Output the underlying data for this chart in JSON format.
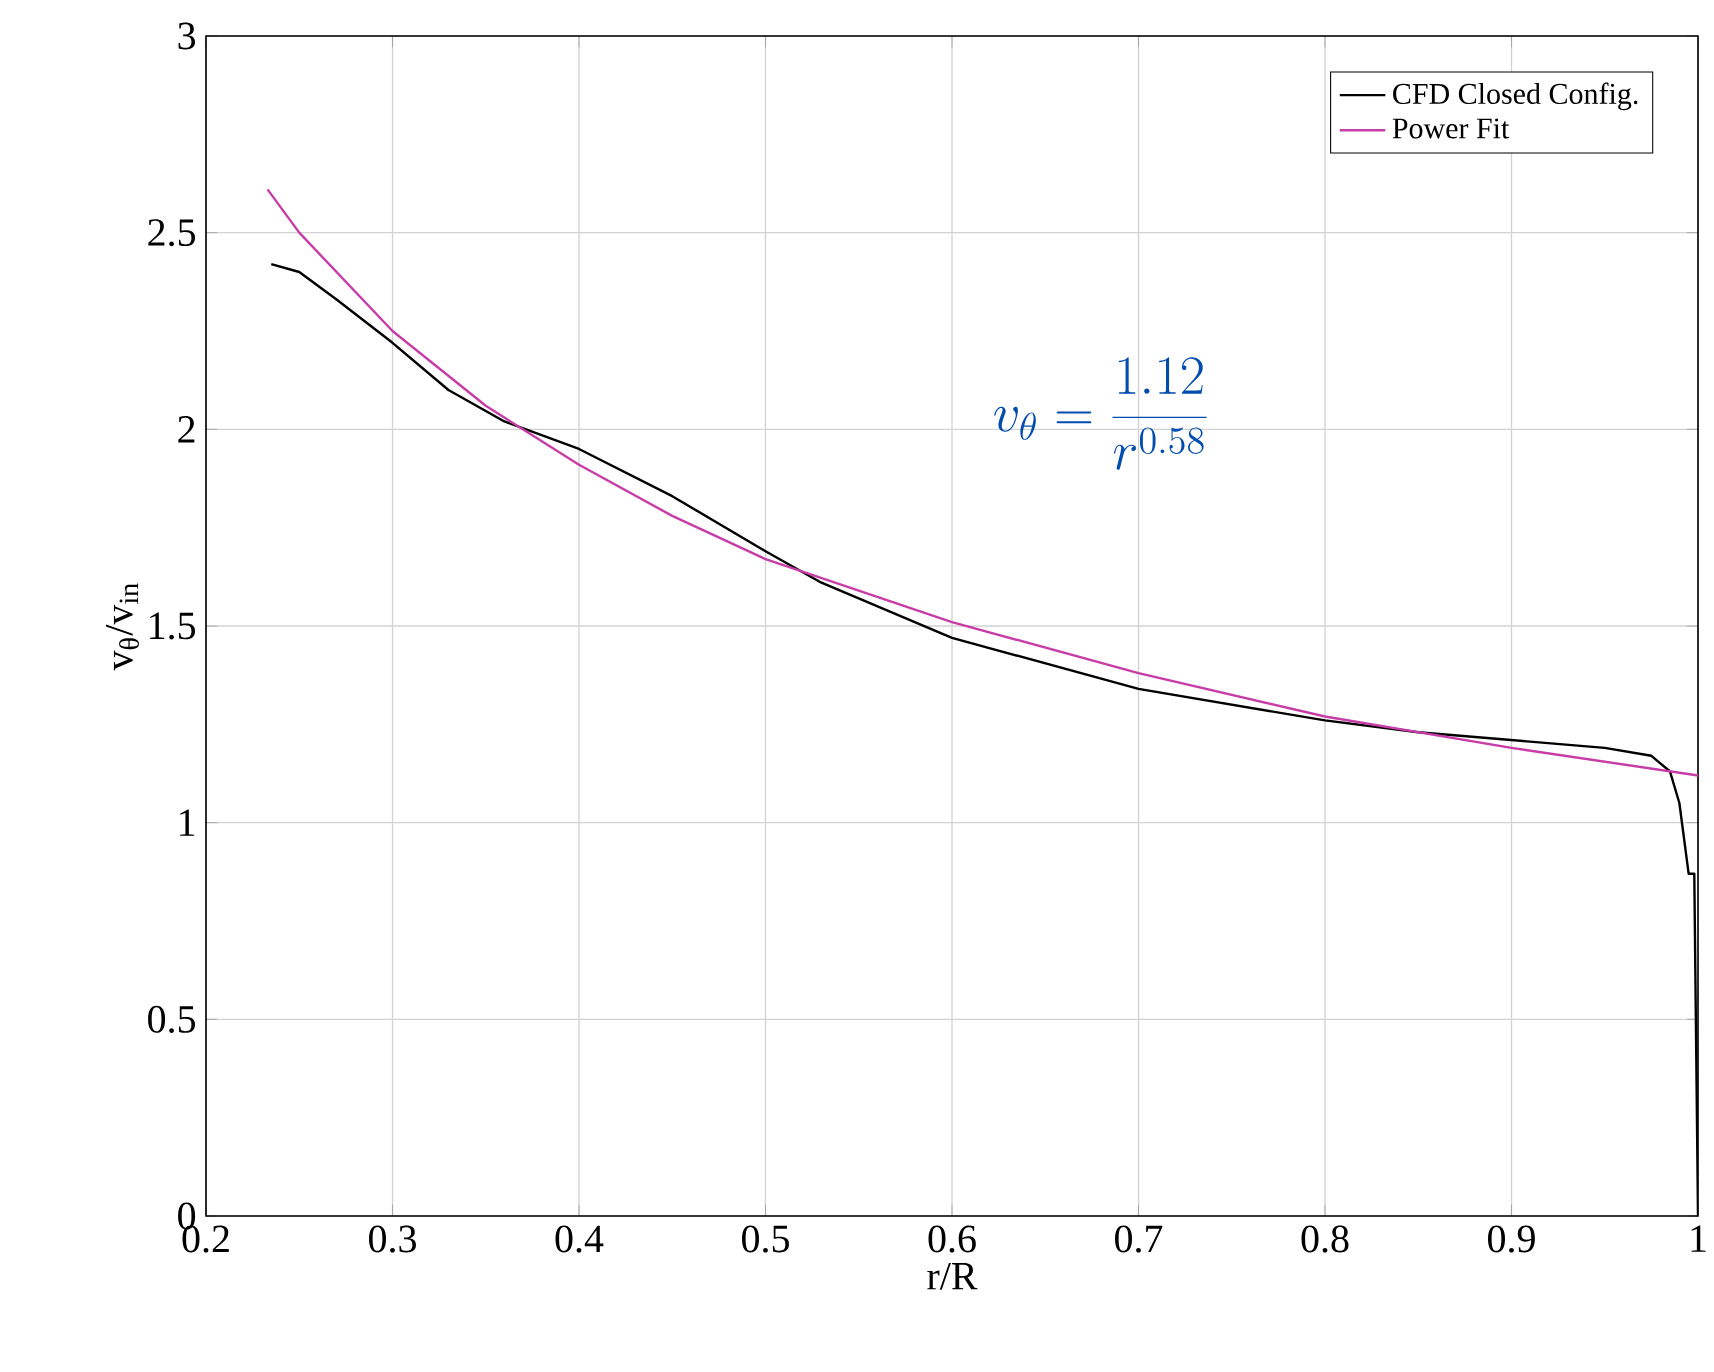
{
  "chart_data": {
    "type": "line",
    "xlabel": "r/R",
    "ylabel": "v$_{θ}$/v$_{in}$",
    "xlim": [
      0.2,
      1
    ],
    "ylim": [
      0,
      3
    ],
    "xticks": [
      0.2,
      0.3,
      0.4,
      0.5,
      0.6,
      0.7,
      0.8,
      0.9,
      1
    ],
    "yticks": [
      0,
      0.5,
      1,
      1.5,
      2,
      2.5,
      3
    ],
    "grid": true,
    "legend": "top right",
    "line_style": "solid",
    "marker": "none",
    "annotations": [
      "v_\\theta = \\frac{1.12}{r^{0.58}}"
    ],
    "series": [
      {
        "name": "CFD Closed Config.",
        "color": "#000000",
        "x": [
          0.235,
          0.25,
          0.27,
          0.3,
          0.33,
          0.36,
          0.4,
          0.45,
          0.5,
          0.53,
          0.6,
          0.7,
          0.8,
          0.85,
          0.9,
          0.95,
          0.975,
          0.985,
          0.99,
          0.995,
          0.998,
          1.0
        ],
        "values": [
          2.42,
          2.4,
          2.33,
          2.22,
          2.1,
          2.02,
          1.95,
          1.83,
          1.69,
          1.61,
          1.47,
          1.34,
          1.26,
          1.23,
          1.21,
          1.19,
          1.17,
          1.13,
          1.05,
          0.87,
          0.87,
          0
        ]
      },
      {
        "name": "Power Fit",
        "type": "line",
        "color": "#c83ca8",
        "x": [
          0.233,
          0.25,
          0.3,
          0.35,
          0.4,
          0.45,
          0.5,
          0.6,
          0.7,
          0.8,
          0.9,
          1.0
        ],
        "values": [
          2.61,
          2.5,
          2.25,
          2.06,
          1.91,
          1.78,
          1.67,
          1.51,
          1.38,
          1.27,
          1.19,
          1.12
        ]
      }
    ]
  }
}
